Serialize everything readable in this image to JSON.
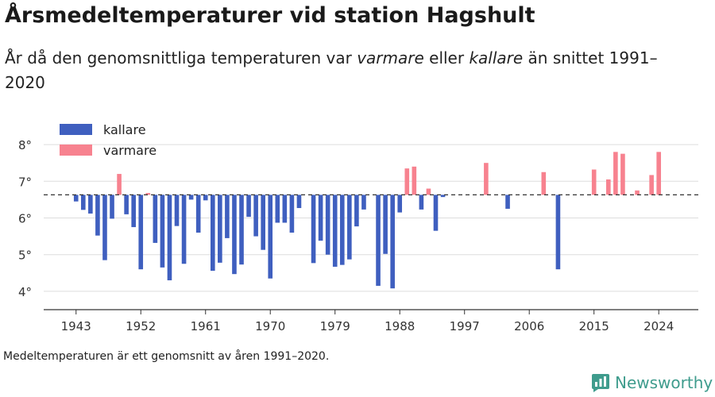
{
  "title": "Årsmedeltemperaturer vid station Hagshult",
  "subtitle": {
    "part1": "År då den genomsnittliga temperaturen var ",
    "em1": "varmare",
    "part2": " eller ",
    "em2": "kallare",
    "part3": " än snittet 1991–2020"
  },
  "footnote": "Medeltemperaturen är ett genomsnitt av åren 1991–2020.",
  "brand": {
    "name": "Newsworthy",
    "icon": "newsworthy-logo-icon",
    "color": "#3f9c8d"
  },
  "chart_data": {
    "type": "bar",
    "baseline": 6.63,
    "ylim": [
      3.5,
      8.5
    ],
    "xlim": [
      1938.5,
      2029.5
    ],
    "yticks": [
      4,
      5,
      6,
      7,
      8
    ],
    "ytick_labels": [
      "4°",
      "5°",
      "6°",
      "7°",
      "8°"
    ],
    "xticks": [
      1943,
      1952,
      1961,
      1970,
      1979,
      1988,
      1997,
      2006,
      2015,
      2024
    ],
    "xtick_labels": [
      "1943",
      "1952",
      "1961",
      "1970",
      "1979",
      "1988",
      "1997",
      "2006",
      "2015",
      "2024"
    ],
    "grid": true,
    "legend_position": "top-left",
    "series": [
      {
        "name": "kallare",
        "color": "#3f5fbf"
      },
      {
        "name": "varmare",
        "color": "#f7828f"
      }
    ],
    "years": [
      1943,
      1944,
      1945,
      1946,
      1947,
      1948,
      1949,
      1950,
      1951,
      1952,
      1953,
      1954,
      1955,
      1956,
      1957,
      1958,
      1959,
      1960,
      1961,
      1962,
      1963,
      1964,
      1965,
      1966,
      1967,
      1968,
      1969,
      1970,
      1971,
      1972,
      1973,
      1974,
      1976,
      1977,
      1978,
      1979,
      1980,
      1981,
      1982,
      1983,
      1985,
      1986,
      1987,
      1988,
      1989,
      1990,
      1991,
      1992,
      1993,
      1994,
      2000,
      2003,
      2008,
      2010,
      2015,
      2017,
      2018,
      2019,
      2021,
      2023,
      2024
    ],
    "values": [
      6.45,
      6.22,
      6.12,
      5.52,
      4.85,
      5.98,
      7.2,
      6.1,
      5.75,
      4.6,
      6.68,
      5.32,
      4.65,
      4.3,
      5.78,
      4.75,
      6.5,
      5.6,
      6.48,
      4.56,
      4.78,
      5.45,
      4.47,
      4.73,
      6.03,
      5.5,
      5.13,
      4.35,
      5.87,
      5.87,
      5.6,
      6.27,
      4.77,
      5.38,
      5.0,
      4.67,
      4.72,
      4.87,
      5.77,
      6.23,
      4.15,
      5.02,
      4.08,
      6.15,
      7.35,
      7.4,
      6.23,
      6.8,
      5.65,
      6.57,
      7.5,
      6.25,
      7.25,
      4.6,
      7.32,
      7.05,
      7.8,
      7.75,
      6.75,
      7.17,
      7.8
    ]
  }
}
